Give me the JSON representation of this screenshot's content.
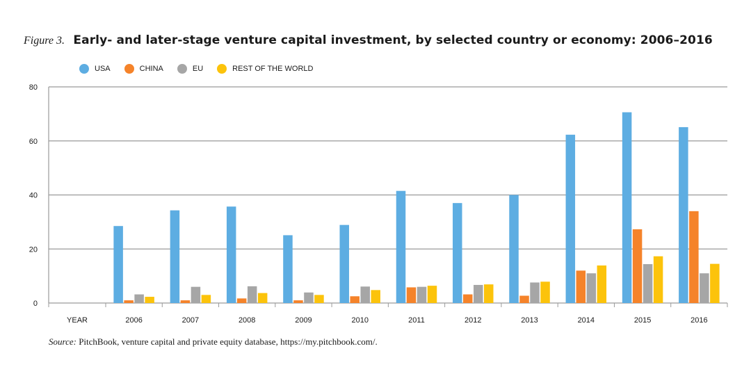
{
  "figure_label": "Figure 3.",
  "title": "Early- and later-stage venture capital investment, by selected country or economy: 2006–2016",
  "source": {
    "label": "Source:",
    "text": "PitchBook, venture capital and private equity database, https://my.pitchbook.com/."
  },
  "chart_data": {
    "type": "bar",
    "categories": [
      "YEAR",
      "2006",
      "2007",
      "2008",
      "2009",
      "2010",
      "2011",
      "2012",
      "2013",
      "2014",
      "2015",
      "2016"
    ],
    "series": [
      {
        "name": "USA",
        "color": "#5dade2",
        "values": [
          null,
          28.5,
          34.3,
          35.7,
          25.1,
          28.9,
          41.5,
          37.0,
          40.0,
          62.3,
          70.6,
          65.1
        ]
      },
      {
        "name": "CHINA",
        "color": "#f5832a",
        "values": [
          null,
          1.0,
          1.0,
          1.7,
          1.0,
          2.5,
          5.8,
          3.2,
          2.7,
          12.0,
          27.3,
          34.0
        ]
      },
      {
        "name": "EU",
        "color": "#a6a6a6",
        "values": [
          null,
          3.2,
          6.0,
          6.2,
          3.9,
          6.1,
          6.0,
          6.7,
          7.6,
          11.0,
          14.4,
          11.0
        ]
      },
      {
        "name": "REST OF THE WORLD",
        "color": "#fcc30b",
        "values": [
          null,
          2.3,
          3.0,
          3.7,
          3.0,
          4.8,
          6.4,
          6.9,
          7.9,
          13.9,
          17.3,
          14.5
        ]
      }
    ],
    "yticks": [
      0,
      20,
      40,
      60,
      80
    ],
    "ylim": [
      0,
      80
    ],
    "grid": true,
    "legend_position": "top-left"
  }
}
